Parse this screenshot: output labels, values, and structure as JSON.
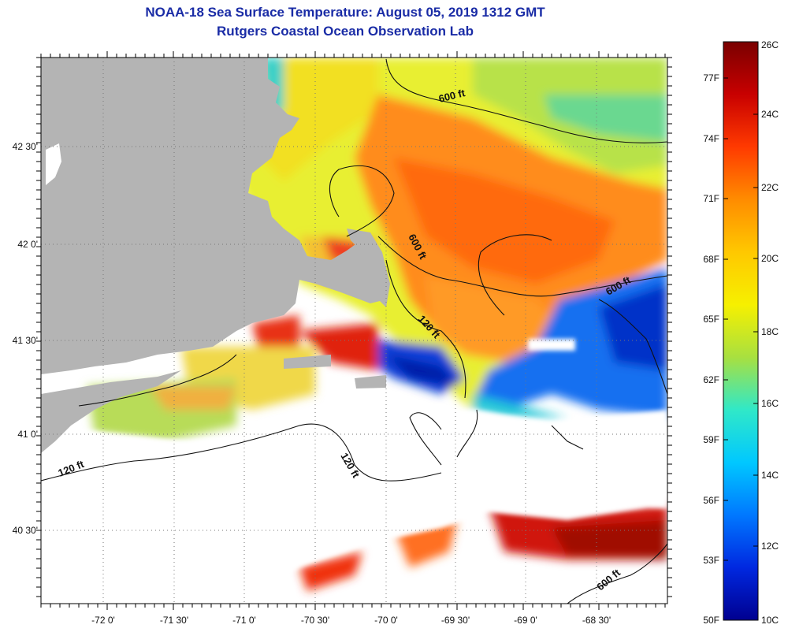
{
  "title": "NOAA-18 Sea Surface Temperature:  August 05, 2019 1312 GMT",
  "subtitle": "Rutgers Coastal Ocean Observation Lab",
  "map": {
    "lon_labels": [
      "-72 0'",
      "-71 30'",
      "-71 0'",
      "-70 30'",
      "-70 0'",
      "-69 30'",
      "-69 0'",
      "-68 30'"
    ],
    "lat_labels": [
      "42 30'",
      "42 0'",
      "41 30'",
      "41 0'",
      "40 30'"
    ],
    "contour_labels": [
      "600 ft",
      "600 ft",
      "600 ft",
      "600 ft",
      "120 ft",
      "120 ft",
      "120 ft"
    ]
  },
  "colorbar": {
    "fahrenheit_labels": [
      "77F",
      "74F",
      "71F",
      "68F",
      "65F",
      "62F",
      "59F",
      "56F",
      "53F",
      "50F"
    ],
    "celsius_labels": [
      "26C",
      "24C",
      "22C",
      "20C",
      "18C",
      "16C",
      "14C",
      "12C",
      "10C"
    ],
    "colors": [
      "#7a0000",
      "#c80000",
      "#ff3a00",
      "#ff8c00",
      "#ffc800",
      "#f6f000",
      "#a8e040",
      "#30e8c8",
      "#00c8ff",
      "#0078ff",
      "#0028e0",
      "#000090"
    ]
  },
  "colors": {
    "land": "#b4b4b4",
    "no_data": "#ffffff",
    "warm_red": "#e8240c",
    "orange": "#ff8a1e",
    "yellow": "#ffd800",
    "green": "#a8e040",
    "cyan": "#28d8d0",
    "blue": "#1464e8",
    "dark_blue": "#0020c0",
    "dark_red": "#a00800"
  }
}
